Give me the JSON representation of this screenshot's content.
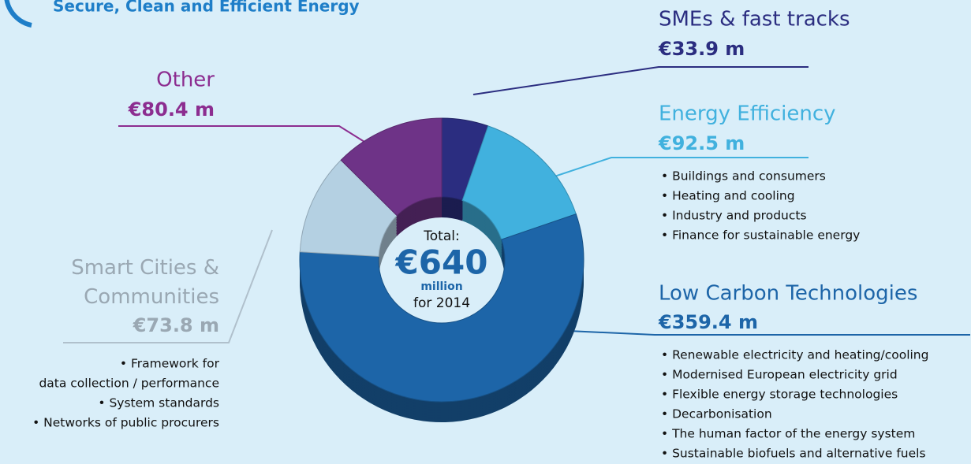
{
  "chart_data": {
    "type": "donut",
    "title": "Secure, Clean and Efficient Energy",
    "categories": [
      "SMEs & fast tracks",
      "Energy Efficiency",
      "Low Carbon Technologies",
      "Smart Cities & Communities",
      "Other"
    ],
    "values": [
      33.9,
      92.5,
      359.4,
      73.8,
      80.4
    ],
    "value_labels": [
      "€33.9 m",
      "€92.5 m",
      "€359.4 m",
      "€73.8 m",
      "€80.4 m"
    ],
    "colors": [
      "#2b2d80",
      "#41b1de",
      "#1d65a8",
      "#b4d0e2",
      "#6e3387"
    ],
    "label_colors": [
      "#2b2d80",
      "#41b1de",
      "#1d65a8",
      "#9aa8b3",
      "#8c2d90"
    ],
    "details": [
      [],
      [
        "• Buildings and consumers",
        "• Heating and cooling",
        "• Industry and products",
        "• Finance for sustainable energy"
      ],
      [
        "• Renewable electricity and heating/cooling",
        "• Modernised European electricity grid",
        "• Flexible energy storage technologies",
        "• Decarbonisation",
        "• The human factor of the energy system",
        "• Sustainable biofuels and alternative fuels"
      ],
      [
        "• Framework for",
        "data collection / performance",
        "• System standards",
        "• Networks of public procurers"
      ],
      []
    ],
    "center_text": [
      "Total:",
      "€640",
      "million",
      "for 2014"
    ]
  }
}
